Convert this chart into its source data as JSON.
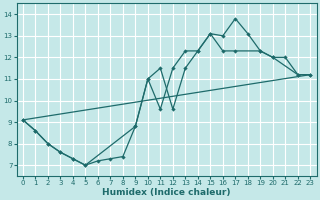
{
  "xlabel": "Humidex (Indice chaleur)",
  "xlim": [
    -0.5,
    23.5
  ],
  "ylim": [
    6.5,
    14.5
  ],
  "xticks": [
    0,
    1,
    2,
    3,
    4,
    5,
    6,
    7,
    8,
    9,
    10,
    11,
    12,
    13,
    14,
    15,
    16,
    17,
    18,
    19,
    20,
    21,
    22,
    23
  ],
  "yticks": [
    7,
    8,
    9,
    10,
    11,
    12,
    13,
    14
  ],
  "bg_color": "#c5e8e8",
  "grid_color": "#ffffff",
  "line_color": "#1e6b6b",
  "line1_x": [
    0,
    1,
    2,
    3,
    4,
    5,
    6,
    7,
    8,
    9,
    10,
    11,
    12,
    13,
    14,
    15,
    16,
    17,
    18,
    19,
    20,
    21,
    22,
    23
  ],
  "line1_y": [
    9.1,
    8.6,
    8.0,
    7.6,
    7.3,
    7.0,
    7.2,
    7.3,
    7.4,
    8.8,
    11.0,
    9.6,
    11.5,
    12.3,
    12.3,
    13.1,
    13.0,
    13.8,
    13.1,
    12.3,
    12.0,
    12.0,
    11.2,
    11.2
  ],
  "line2_x": [
    0,
    1,
    2,
    3,
    4,
    5,
    9,
    10,
    11,
    12,
    13,
    14,
    15,
    16,
    17,
    19,
    20,
    22,
    23
  ],
  "line2_y": [
    9.1,
    8.6,
    8.0,
    7.6,
    7.3,
    7.0,
    8.8,
    11.0,
    11.5,
    9.6,
    11.5,
    12.3,
    13.1,
    12.3,
    12.3,
    12.3,
    12.0,
    11.2,
    11.2
  ],
  "line3_x": [
    0,
    23
  ],
  "line3_y": [
    9.1,
    11.2
  ]
}
